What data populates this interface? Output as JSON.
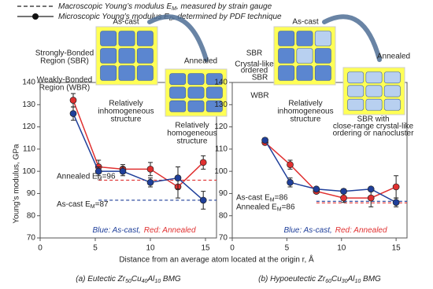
{
  "legend": [
    {
      "style": "dashed",
      "text": [
        "Macroscopic Young’s modulus E",
        "M",
        ", measured by strain gauge"
      ]
    },
    {
      "style": "solid-marker",
      "text": [
        "Microscopic Young’s modulus E",
        "D",
        ", determined by PDF technique"
      ]
    }
  ],
  "xlabel": "Distance from an average atom located at the origin  r, Å",
  "chart_data": [
    {
      "type": "line",
      "ylabel": "Young’s modulus, GPa",
      "xlim": [
        0,
        16
      ],
      "ylim": [
        70,
        140
      ],
      "xticks": [
        0,
        5,
        10,
        15
      ],
      "yticks": [
        70,
        80,
        90,
        100,
        110,
        120,
        130,
        140
      ],
      "series": [
        {
          "color": "#e03030",
          "x": [
            3,
            5.3,
            7.5,
            10,
            12.5,
            14.8
          ],
          "values": [
            132,
            102,
            101,
            101,
            93,
            104
          ],
          "errors": [
            3,
            3,
            2,
            3,
            5,
            3
          ]
        },
        {
          "color": "#1f3f9a",
          "x": [
            3,
            5.3,
            7.5,
            10,
            12.5,
            14.8
          ],
          "values": [
            126,
            100,
            100,
            95,
            97,
            87
          ],
          "errors": [
            3,
            2,
            2,
            2,
            5,
            4
          ]
        }
      ],
      "ref_lines": [
        {
          "value": 96,
          "color": "#e03030",
          "x_start": 5.3,
          "label": [
            "Annealed E",
            "M",
            "=96"
          ]
        },
        {
          "value": 87,
          "color": "#1f3f9a",
          "x_start": 5.3,
          "label": [
            "As-cast E",
            "M",
            "=87"
          ]
        }
      ],
      "note": [
        "Blue: As-cast,",
        "Red: Annealed"
      ],
      "caption": [
        "(a) Eutectic Zr",
        "50",
        "Cu",
        "40",
        "Al",
        "10",
        " BMG"
      ],
      "annotations": [
        {
          "lines": [
            "As-cast"
          ]
        },
        {
          "lines": [
            "Annealed"
          ]
        },
        {
          "lines": [
            "Strongly-Bonded",
            "Region (SBR)"
          ]
        },
        {
          "lines": [
            "Weakly-Bonded",
            "Region (WBR)"
          ]
        },
        {
          "lines": [
            "Relatively",
            "inhomogeneous",
            "structure"
          ]
        },
        {
          "lines": [
            "Relatively",
            "homogeneous",
            "structure"
          ]
        }
      ]
    },
    {
      "type": "line",
      "xlim": [
        0,
        16
      ],
      "ylim": [
        70,
        140
      ],
      "xticks": [
        0,
        5,
        10,
        15
      ],
      "yticks": [
        70,
        80,
        90,
        100,
        110,
        120,
        130,
        140
      ],
      "series": [
        {
          "color": "#e03030",
          "x": [
            3,
            5.3,
            7.7,
            10.2,
            12.7,
            15
          ],
          "values": [
            113,
            103,
            91,
            88,
            88,
            93
          ],
          "errors": [
            1,
            2,
            1,
            2,
            4,
            5
          ]
        },
        {
          "color": "#1f3f9a",
          "x": [
            3,
            5.3,
            7.7,
            10.2,
            12.7,
            15
          ],
          "values": [
            114,
            95,
            92,
            91,
            92,
            86
          ],
          "errors": [
            1,
            2,
            1,
            1,
            1,
            2
          ]
        }
      ],
      "ref_lines": [
        {
          "value": 86.5,
          "color": "#1f3f9a",
          "x_start": 7.7,
          "label": [
            "As-cast E",
            "M",
            "=86"
          ]
        },
        {
          "value": 85.8,
          "color": "#e03030",
          "x_start": 7.7,
          "label": [
            "Annealed E",
            "M",
            "=86"
          ]
        }
      ],
      "note": [
        "Blue: As-cast,",
        "Red: Annealed"
      ],
      "caption": [
        "(b) Hypoeutectic Zr",
        "60",
        "Cu",
        "30",
        "Al",
        "10",
        " BMG"
      ],
      "annotations": [
        {
          "lines": [
            "As-cast"
          ]
        },
        {
          "lines": [
            "Annealed"
          ]
        },
        {
          "lines": [
            "SBR"
          ]
        },
        {
          "lines": [
            "Crystal-like",
            "ordered"
          ]
        },
        {
          "lines": [
            "SBR"
          ]
        },
        {
          "lines": [
            "WBR"
          ]
        },
        {
          "lines": [
            "Relatively",
            "inhomogeneous",
            "structure"
          ]
        },
        {
          "lines": [
            "SBR with",
            "close-range crystal-like",
            "ordering or nanocluster"
          ]
        }
      ]
    }
  ]
}
